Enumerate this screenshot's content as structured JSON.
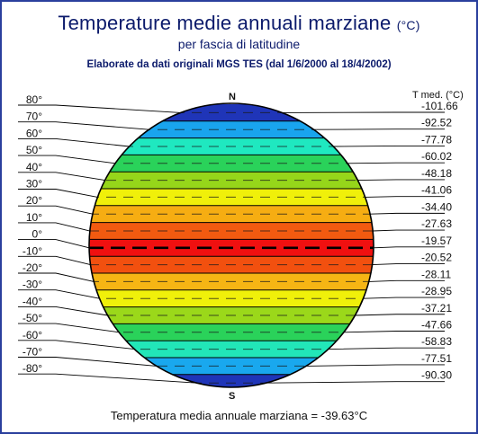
{
  "title": {
    "main": "Temperature medie annuali marziane",
    "unit": "(°C)"
  },
  "subtitle": "per fascia di latitudine",
  "source": "Elaborate da dati originali MGS TES (dal 1/6/2000 al 18/4/2002)",
  "header_right": "T med. (°C)",
  "north_label": "N",
  "south_label": "S",
  "footer": "Temperatura media annuale marziana = -39.63°C",
  "colors": {
    "outline": "#000000",
    "frame": "#2a3f9d",
    "title": "#0b1a6b"
  },
  "bands": [
    {
      "lat": "80°",
      "temp": "-101.66",
      "color": "#1f35b8"
    },
    {
      "lat": "70°",
      "temp": "-92.52",
      "color": "#19a4ee"
    },
    {
      "lat": "60°",
      "temp": "-77.78",
      "color": "#1fe8c0"
    },
    {
      "lat": "50°",
      "temp": "-60.02",
      "color": "#2ad25a"
    },
    {
      "lat": "40°",
      "temp": "-48.18",
      "color": "#96d61a"
    },
    {
      "lat": "30°",
      "temp": "-41.06",
      "color": "#f0f00a"
    },
    {
      "lat": "20°",
      "temp": "-34.40",
      "color": "#f6ad12"
    },
    {
      "lat": "10°",
      "temp": "-27.63",
      "color": "#f25a10"
    },
    {
      "lat": "0°",
      "temp": "-19.57",
      "color": "#f01010"
    },
    {
      "lat": "-10°",
      "temp": "-20.52",
      "color": "#f2500f"
    },
    {
      "lat": "-20°",
      "temp": "-28.11",
      "color": "#f6b514"
    },
    {
      "lat": "-30°",
      "temp": "-28.95",
      "color": "#f0f00a"
    },
    {
      "lat": "-40°",
      "temp": "-37.21",
      "color": "#9bd81a"
    },
    {
      "lat": "-50°",
      "temp": "-47.66",
      "color": "#2ad25a"
    },
    {
      "lat": "-60°",
      "temp": "-58.83",
      "color": "#22e6b8"
    },
    {
      "lat": "-70°",
      "temp": "-77.51",
      "color": "#19a8ee"
    },
    {
      "lat": "-80°",
      "temp": "-90.30",
      "color": "#1f35b8"
    }
  ]
}
